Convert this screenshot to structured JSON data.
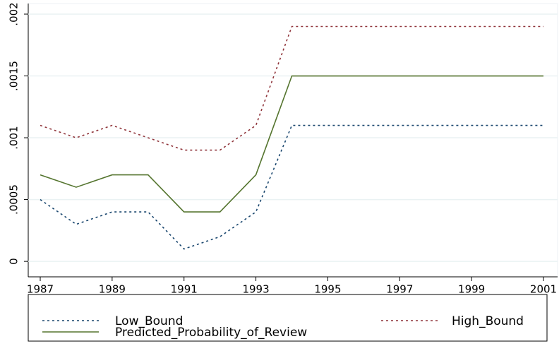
{
  "chart_data": {
    "type": "line",
    "x": [
      1987,
      1988,
      1989,
      1990,
      1991,
      1992,
      1993,
      1994,
      1995,
      1996,
      1997,
      1998,
      1999,
      2000,
      2001
    ],
    "series": [
      {
        "name": "Low_Bound",
        "color": "#1a476f",
        "dash": "3,4",
        "values": [
          0.0005,
          0.0003,
          0.0004,
          0.0004,
          0.0001,
          0.0002,
          0.0004,
          0.0011,
          0.0011,
          0.0011,
          0.0011,
          0.0011,
          0.0011,
          0.0011,
          0.0011
        ]
      },
      {
        "name": "High_Bound",
        "color": "#90353b",
        "dash": "3,4",
        "values": [
          0.0011,
          0.001,
          0.0011,
          0.001,
          0.0009,
          0.0009,
          0.0011,
          0.0019,
          0.0019,
          0.0019,
          0.0019,
          0.0019,
          0.0019,
          0.0019,
          0.0019
        ]
      },
      {
        "name": "Predicted_Probability_of_Review",
        "color": "#55752f",
        "dash": "none",
        "values": [
          0.0007,
          0.0006,
          0.0007,
          0.0007,
          0.0004,
          0.0004,
          0.0007,
          0.0015,
          0.0015,
          0.0015,
          0.0015,
          0.0015,
          0.0015,
          0.0015,
          0.0015
        ]
      }
    ],
    "xlim": [
      1987,
      2001
    ],
    "xticks": [
      1987,
      1989,
      1991,
      1993,
      1995,
      1997,
      1999,
      2001
    ],
    "ylim": [
      -0.000125,
      0.002
    ],
    "yticks": [
      0,
      {
        "value": 0.0005,
        "label": ".0005"
      },
      {
        "value": 0.001,
        "label": ".001"
      },
      {
        "value": 0.0015,
        "label": ".0015"
      },
      {
        "value": 0.002,
        "label": ".002"
      }
    ],
    "grid": true
  }
}
